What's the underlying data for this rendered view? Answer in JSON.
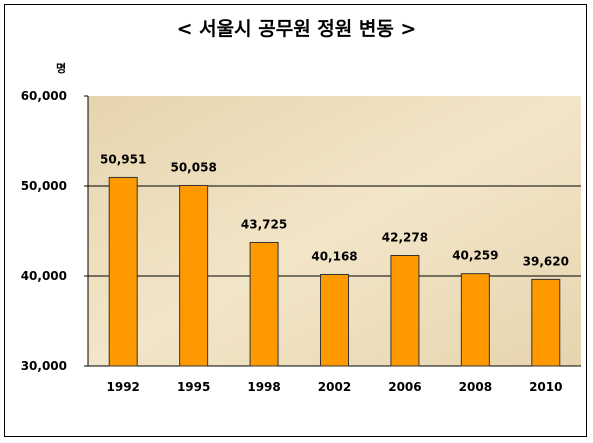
{
  "chart_data": {
    "type": "bar",
    "title": "< 서울시 공무원 정원 변동 >",
    "unit": "명",
    "categories": [
      "1992",
      "1995",
      "1998",
      "2002",
      "2006",
      "2008",
      "2010"
    ],
    "values": [
      50951,
      50058,
      43725,
      40168,
      42278,
      40259,
      39620
    ],
    "data_labels": [
      "50,951",
      "50,058",
      "43,725",
      "40,168",
      "42,278",
      "40,259",
      "39,620"
    ],
    "ylim": [
      30000,
      60000
    ],
    "yticks": [
      30000,
      40000,
      50000,
      60000
    ],
    "ytick_labels": [
      "30,000",
      "40,000",
      "50,000",
      "60,000"
    ],
    "gridlines": [
      40000,
      50000
    ],
    "grid": true,
    "legend": "none",
    "colors": {
      "bar_fill": "#ff9900",
      "bar_stroke": "#333333",
      "plot_background": "#e6d4ae",
      "plot_background_light": "#f2e6c8",
      "gridline": "#000000"
    }
  }
}
